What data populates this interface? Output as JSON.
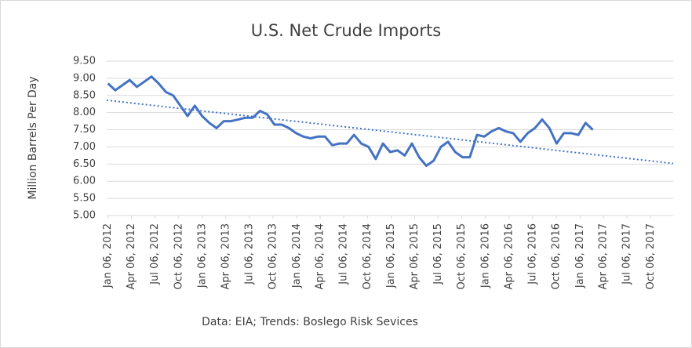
{
  "chart_data": {
    "type": "line",
    "title": "U.S. Net Crude Imports",
    "y_label": "Million Barrels Per Day",
    "note": "Data: EIA; Trends: Boslego Risk Sevices",
    "color": "#4472c4",
    "x": [
      "2012-01-06",
      "2012-02-03",
      "2012-03-02",
      "2012-03-30",
      "2012-04-27",
      "2012-05-25",
      "2012-06-22",
      "2012-07-20",
      "2012-08-17",
      "2012-09-14",
      "2012-10-12",
      "2012-11-09",
      "2012-12-07",
      "2013-01-04",
      "2013-02-01",
      "2013-03-01",
      "2013-03-29",
      "2013-04-26",
      "2013-05-24",
      "2013-06-21",
      "2013-07-19",
      "2013-08-16",
      "2013-09-13",
      "2013-10-11",
      "2013-11-08",
      "2013-12-06",
      "2014-01-03",
      "2014-01-31",
      "2014-02-28",
      "2014-03-28",
      "2014-04-25",
      "2014-05-23",
      "2014-06-20",
      "2014-07-18",
      "2014-08-15",
      "2014-09-12",
      "2014-10-10",
      "2014-11-07",
      "2014-12-05",
      "2015-01-02",
      "2015-01-30",
      "2015-02-27",
      "2015-03-27",
      "2015-04-24",
      "2015-05-22",
      "2015-06-19",
      "2015-07-17",
      "2015-08-14",
      "2015-09-11",
      "2015-10-09",
      "2015-11-06",
      "2015-12-04",
      "2016-01-01",
      "2016-01-29",
      "2016-02-26",
      "2016-03-25",
      "2016-04-22",
      "2016-05-20",
      "2016-06-17",
      "2016-07-15",
      "2016-08-12",
      "2016-09-09",
      "2016-10-07",
      "2016-11-04",
      "2016-12-02",
      "2016-12-30",
      "2017-01-27",
      "2017-02-24"
    ],
    "values": [
      8.85,
      8.65,
      8.8,
      8.95,
      8.75,
      8.9,
      9.05,
      8.85,
      8.6,
      8.5,
      8.2,
      7.9,
      8.2,
      7.9,
      7.7,
      7.55,
      7.75,
      7.75,
      7.8,
      7.85,
      7.85,
      8.05,
      7.95,
      7.65,
      7.65,
      7.55,
      7.4,
      7.3,
      7.25,
      7.3,
      7.3,
      7.05,
      7.1,
      7.1,
      7.35,
      7.1,
      7.0,
      6.65,
      7.1,
      6.85,
      6.9,
      6.75,
      7.1,
      6.7,
      6.45,
      6.6,
      7.0,
      7.15,
      6.85,
      6.7,
      6.7,
      7.35,
      7.3,
      7.45,
      7.55,
      7.45,
      7.4,
      7.15,
      7.4,
      7.55,
      7.8,
      7.55,
      7.1,
      7.4,
      7.4,
      7.35,
      7.7,
      7.5
    ],
    "trendline": {
      "x": [
        "2012-01-01",
        "2018-01-01"
      ],
      "values": [
        8.36,
        6.52
      ]
    },
    "xlim": [
      "2012-01-01",
      "2018-01-01"
    ],
    "xticks": [
      {
        "value": "2012-01-06",
        "label": "Jan 06, 2012"
      },
      {
        "value": "2012-04-06",
        "label": "Apr 06, 2012"
      },
      {
        "value": "2012-07-06",
        "label": "Jul 06, 2012"
      },
      {
        "value": "2012-10-06",
        "label": "Oct 06, 2012"
      },
      {
        "value": "2013-01-06",
        "label": "Jan 06, 2013"
      },
      {
        "value": "2013-04-06",
        "label": "Apr 06, 2013"
      },
      {
        "value": "2013-07-06",
        "label": "Jul 06, 2013"
      },
      {
        "value": "2013-10-06",
        "label": "Oct 06, 2013"
      },
      {
        "value": "2014-01-06",
        "label": "Jan 06, 2014"
      },
      {
        "value": "2014-04-06",
        "label": "Apr 06, 2014"
      },
      {
        "value": "2014-07-06",
        "label": "Jul 06, 2014"
      },
      {
        "value": "2014-10-06",
        "label": "Oct 06, 2014"
      },
      {
        "value": "2015-01-06",
        "label": "Jan 06, 2015"
      },
      {
        "value": "2015-04-06",
        "label": "Apr 06, 2015"
      },
      {
        "value": "2015-07-06",
        "label": "Jul 06, 2015"
      },
      {
        "value": "2015-10-06",
        "label": "Oct 06, 2015"
      },
      {
        "value": "2016-01-06",
        "label": "Jan 06, 2016"
      },
      {
        "value": "2016-04-06",
        "label": "Apr 06, 2016"
      },
      {
        "value": "2016-07-06",
        "label": "Jul 06, 2016"
      },
      {
        "value": "2016-10-06",
        "label": "Oct 06, 2016"
      },
      {
        "value": "2017-01-06",
        "label": "Jan 06, 2017"
      },
      {
        "value": "2017-04-06",
        "label": "Apr 06, 2017"
      },
      {
        "value": "2017-07-06",
        "label": "Jul 06, 2017"
      },
      {
        "value": "2017-10-06",
        "label": "Oct 06, 2017"
      }
    ],
    "ylim": [
      5,
      9.5
    ],
    "yticks": [
      {
        "value": 5,
        "label": "5.00"
      },
      {
        "value": 5.5,
        "label": "5.50"
      },
      {
        "value": 6,
        "label": "6.00"
      },
      {
        "value": 6.5,
        "label": "6.50"
      },
      {
        "value": 7,
        "label": "7.00"
      },
      {
        "value": 7.5,
        "label": "7.50"
      },
      {
        "value": 8,
        "label": "8.00"
      },
      {
        "value": 8.5,
        "label": "8.50"
      },
      {
        "value": 9,
        "label": "9.00"
      },
      {
        "value": 9.5,
        "label": "9.50"
      }
    ],
    "grid": true
  }
}
